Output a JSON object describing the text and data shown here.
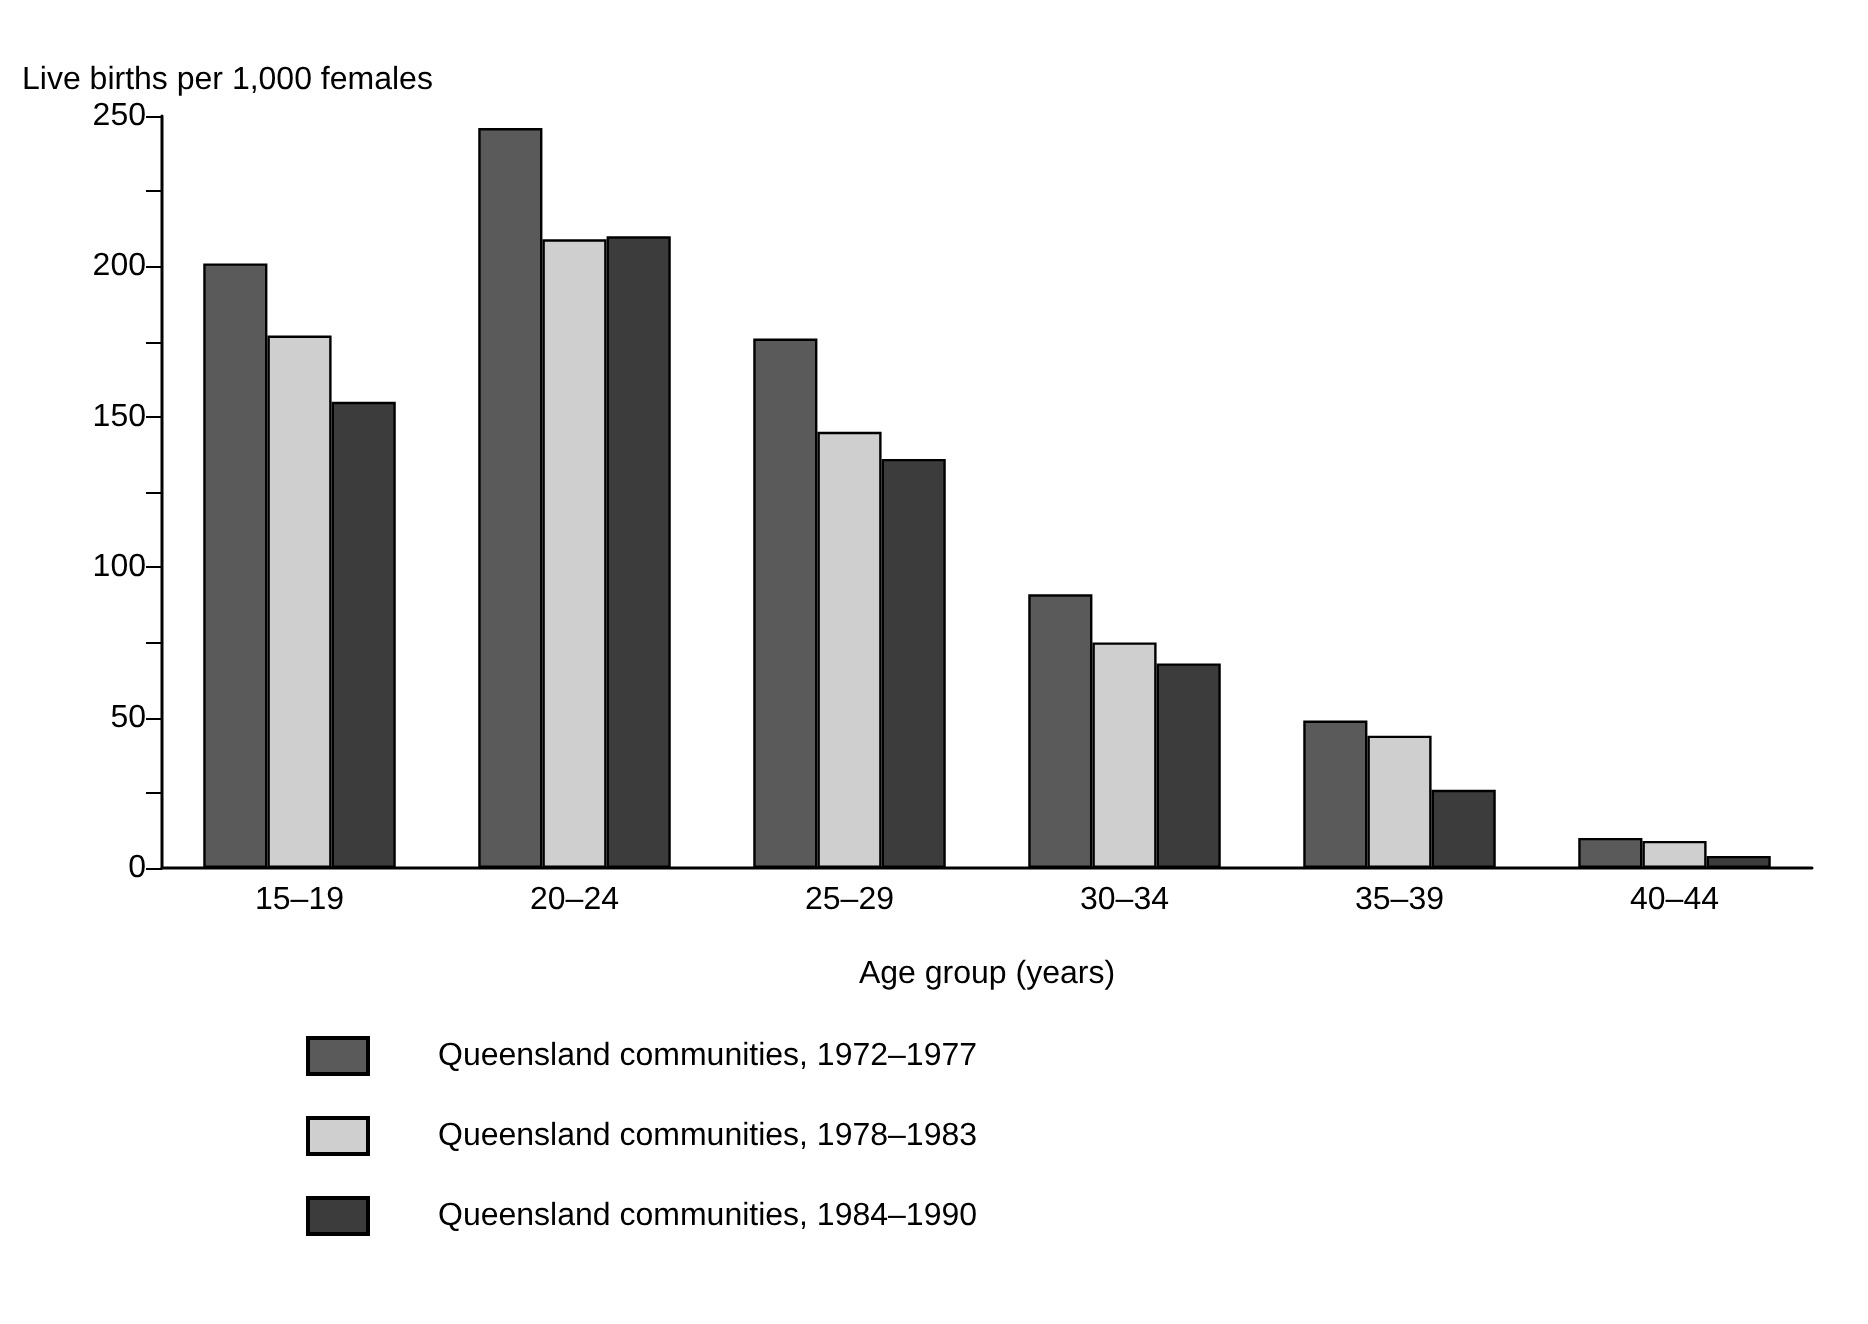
{
  "chart_data": {
    "type": "bar",
    "ylabel": "Live births per 1,000 females",
    "xlabel": "Age group (years)",
    "categories": [
      "15–19",
      "20–24",
      "25–29",
      "30–34",
      "35–39",
      "40–44"
    ],
    "series": [
      {
        "name": "Queensland communities, 1972–1977",
        "color": "#5a5a5a",
        "values": [
          201,
          246,
          176,
          91,
          49,
          10
        ]
      },
      {
        "name": "Queensland communities, 1978–1983",
        "color": "#cfcfcf",
        "values": [
          177,
          209,
          145,
          75,
          44,
          9
        ]
      },
      {
        "name": "Queensland communities, 1984–1990",
        "color": "#3c3c3c",
        "values": [
          155,
          210,
          136,
          68,
          26,
          4
        ]
      }
    ],
    "ylim": [
      0,
      250
    ],
    "yticks": [
      0,
      {
        "value": 25,
        "label": null
      },
      50,
      {
        "value": 75,
        "label": null
      },
      100,
      {
        "value": 125,
        "label": null
      },
      150,
      {
        "value": 175,
        "label": null
      },
      200,
      {
        "value": 225,
        "label": null
      },
      250
    ],
    "grid": false,
    "legend": "bottom left"
  }
}
